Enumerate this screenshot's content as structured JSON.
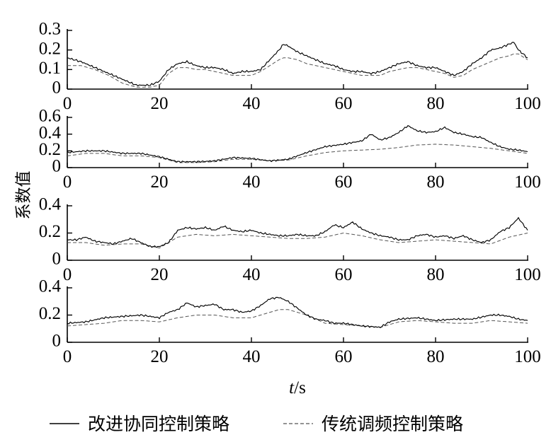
{
  "chart_data": {
    "type": "line",
    "ylabel": "系数值",
    "xlabel_italic": "t",
    "xlabel_unit": "/s",
    "legend": {
      "placement": "bottom-center",
      "entries": [
        "改进协同控制策略",
        "传统调频控制策略"
      ]
    },
    "xlim": [
      0,
      100
    ],
    "xticks": [
      "0",
      "20",
      "40",
      "60",
      "80",
      "100"
    ],
    "subplots": [
      {
        "ylim": [
          0,
          0.3
        ],
        "yticks": [
          "0",
          "0.1",
          "0.2",
          "0.3"
        ],
        "series": [
          {
            "style": "solid",
            "x": [
              0,
              3,
              6,
              9,
              12,
              15,
              18,
              20,
              22,
              24,
              26,
              28,
              30,
              32,
              34,
              36,
              38,
              40,
              42,
              44,
              46,
              47,
              48,
              50,
              52,
              54,
              56,
              58,
              60,
              62,
              64,
              66,
              68,
              70,
              72,
              74,
              76,
              78,
              80,
              82,
              84,
              86,
              88,
              90,
              92,
              94,
              96,
              97,
              98,
              100
            ],
            "y": [
              0.16,
              0.14,
              0.11,
              0.08,
              0.05,
              0.02,
              0.02,
              0.04,
              0.1,
              0.13,
              0.14,
              0.12,
              0.11,
              0.11,
              0.1,
              0.08,
              0.09,
              0.09,
              0.1,
              0.15,
              0.2,
              0.23,
              0.22,
              0.19,
              0.17,
              0.15,
              0.13,
              0.12,
              0.1,
              0.09,
              0.09,
              0.08,
              0.09,
              0.11,
              0.13,
              0.14,
              0.12,
              0.11,
              0.11,
              0.09,
              0.07,
              0.09,
              0.13,
              0.16,
              0.2,
              0.21,
              0.23,
              0.24,
              0.2,
              0.16
            ]
          },
          {
            "style": "dashed",
            "x": [
              0,
              3,
              6,
              9,
              12,
              15,
              18,
              20,
              22,
              24,
              26,
              28,
              30,
              32,
              34,
              36,
              38,
              40,
              42,
              44,
              46,
              47,
              48,
              50,
              52,
              54,
              56,
              58,
              60,
              62,
              64,
              66,
              68,
              70,
              72,
              74,
              76,
              78,
              80,
              82,
              84,
              86,
              88,
              90,
              92,
              94,
              96,
              97,
              98,
              100
            ],
            "y": [
              0.12,
              0.12,
              0.1,
              0.07,
              0.03,
              0.01,
              0.01,
              0.02,
              0.08,
              0.11,
              0.11,
              0.1,
              0.1,
              0.09,
              0.08,
              0.07,
              0.07,
              0.07,
              0.09,
              0.12,
              0.15,
              0.16,
              0.16,
              0.15,
              0.13,
              0.12,
              0.11,
              0.1,
              0.09,
              0.08,
              0.07,
              0.07,
              0.07,
              0.09,
              0.1,
              0.11,
              0.11,
              0.1,
              0.09,
              0.08,
              0.06,
              0.07,
              0.1,
              0.12,
              0.14,
              0.16,
              0.17,
              0.18,
              0.18,
              0.15
            ]
          }
        ]
      },
      {
        "ylim": [
          0,
          0.6
        ],
        "yticks": [
          "0",
          "0.2",
          "0.4",
          "0.6"
        ],
        "series": [
          {
            "style": "solid",
            "x": [
              0,
              4,
              8,
              12,
              16,
              20,
              24,
              28,
              32,
              36,
              40,
              44,
              48,
              52,
              56,
              60,
              64,
              66,
              68,
              70,
              72,
              74,
              76,
              78,
              80,
              82,
              84,
              86,
              88,
              90,
              92,
              94,
              96,
              98,
              100
            ],
            "y": [
              0.18,
              0.2,
              0.2,
              0.17,
              0.17,
              0.13,
              0.07,
              0.07,
              0.08,
              0.12,
              0.11,
              0.08,
              0.1,
              0.18,
              0.25,
              0.28,
              0.32,
              0.4,
              0.33,
              0.36,
              0.42,
              0.5,
              0.44,
              0.42,
              0.43,
              0.48,
              0.42,
              0.4,
              0.37,
              0.36,
              0.3,
              0.25,
              0.22,
              0.21,
              0.19
            ]
          },
          {
            "style": "dashed",
            "x": [
              0,
              4,
              8,
              12,
              16,
              20,
              24,
              28,
              32,
              36,
              40,
              44,
              48,
              52,
              56,
              60,
              64,
              68,
              72,
              76,
              80,
              84,
              88,
              92,
              96,
              100
            ],
            "y": [
              0.14,
              0.17,
              0.17,
              0.14,
              0.14,
              0.12,
              0.06,
              0.06,
              0.07,
              0.1,
              0.1,
              0.08,
              0.09,
              0.14,
              0.18,
              0.2,
              0.21,
              0.22,
              0.24,
              0.27,
              0.28,
              0.27,
              0.25,
              0.23,
              0.2,
              0.17
            ]
          }
        ]
      },
      {
        "ylim": [
          0,
          0.4
        ],
        "yticks": [
          "0",
          "0.2",
          "0.4"
        ],
        "series": [
          {
            "style": "solid",
            "x": [
              0,
              2,
              4,
              6,
              8,
              10,
              12,
              14,
              16,
              18,
              20,
              22,
              24,
              26,
              28,
              30,
              32,
              34,
              36,
              38,
              40,
              42,
              44,
              46,
              48,
              50,
              52,
              54,
              56,
              58,
              60,
              62,
              64,
              66,
              68,
              70,
              72,
              74,
              76,
              78,
              80,
              82,
              84,
              86,
              88,
              90,
              92,
              94,
              96,
              98,
              100
            ],
            "y": [
              0.15,
              0.15,
              0.17,
              0.14,
              0.13,
              0.12,
              0.14,
              0.16,
              0.13,
              0.1,
              0.1,
              0.13,
              0.22,
              0.24,
              0.23,
              0.24,
              0.22,
              0.25,
              0.22,
              0.21,
              0.22,
              0.2,
              0.19,
              0.18,
              0.18,
              0.19,
              0.18,
              0.18,
              0.21,
              0.26,
              0.24,
              0.28,
              0.23,
              0.2,
              0.18,
              0.17,
              0.15,
              0.15,
              0.18,
              0.19,
              0.17,
              0.18,
              0.16,
              0.18,
              0.15,
              0.13,
              0.15,
              0.21,
              0.24,
              0.31,
              0.22
            ]
          },
          {
            "style": "dashed",
            "x": [
              0,
              4,
              8,
              12,
              16,
              20,
              24,
              28,
              32,
              36,
              40,
              44,
              48,
              52,
              56,
              60,
              64,
              68,
              72,
              76,
              80,
              84,
              88,
              92,
              96,
              100
            ],
            "y": [
              0.13,
              0.13,
              0.11,
              0.12,
              0.12,
              0.09,
              0.17,
              0.19,
              0.18,
              0.19,
              0.18,
              0.17,
              0.16,
              0.16,
              0.17,
              0.2,
              0.18,
              0.15,
              0.13,
              0.14,
              0.15,
              0.14,
              0.13,
              0.12,
              0.17,
              0.2
            ]
          }
        ]
      },
      {
        "ylim": [
          0,
          0.4
        ],
        "yticks": [
          "0",
          "0.2",
          "0.4"
        ],
        "series": [
          {
            "style": "solid",
            "x": [
              0,
              4,
              8,
              12,
              16,
              20,
              22,
              24,
              26,
              28,
              30,
              32,
              34,
              36,
              38,
              40,
              42,
              44,
              46,
              48,
              50,
              52,
              54,
              56,
              58,
              60,
              64,
              68,
              70,
              72,
              76,
              80,
              84,
              88,
              92,
              94,
              96,
              98,
              100
            ],
            "y": [
              0.14,
              0.15,
              0.18,
              0.19,
              0.2,
              0.18,
              0.22,
              0.24,
              0.29,
              0.26,
              0.27,
              0.28,
              0.24,
              0.24,
              0.22,
              0.23,
              0.27,
              0.32,
              0.33,
              0.3,
              0.25,
              0.2,
              0.17,
              0.16,
              0.14,
              0.14,
              0.12,
              0.11,
              0.15,
              0.17,
              0.18,
              0.16,
              0.17,
              0.17,
              0.2,
              0.2,
              0.19,
              0.17,
              0.16
            ]
          },
          {
            "style": "dashed",
            "x": [
              0,
              4,
              8,
              12,
              16,
              20,
              24,
              28,
              32,
              36,
              40,
              44,
              46,
              48,
              52,
              56,
              60,
              64,
              68,
              72,
              76,
              80,
              84,
              88,
              92,
              96,
              100
            ],
            "y": [
              0.12,
              0.13,
              0.14,
              0.16,
              0.16,
              0.15,
              0.18,
              0.2,
              0.2,
              0.18,
              0.18,
              0.22,
              0.24,
              0.24,
              0.2,
              0.14,
              0.13,
              0.12,
              0.11,
              0.15,
              0.16,
              0.15,
              0.14,
              0.14,
              0.16,
              0.15,
              0.14
            ]
          }
        ]
      }
    ]
  }
}
